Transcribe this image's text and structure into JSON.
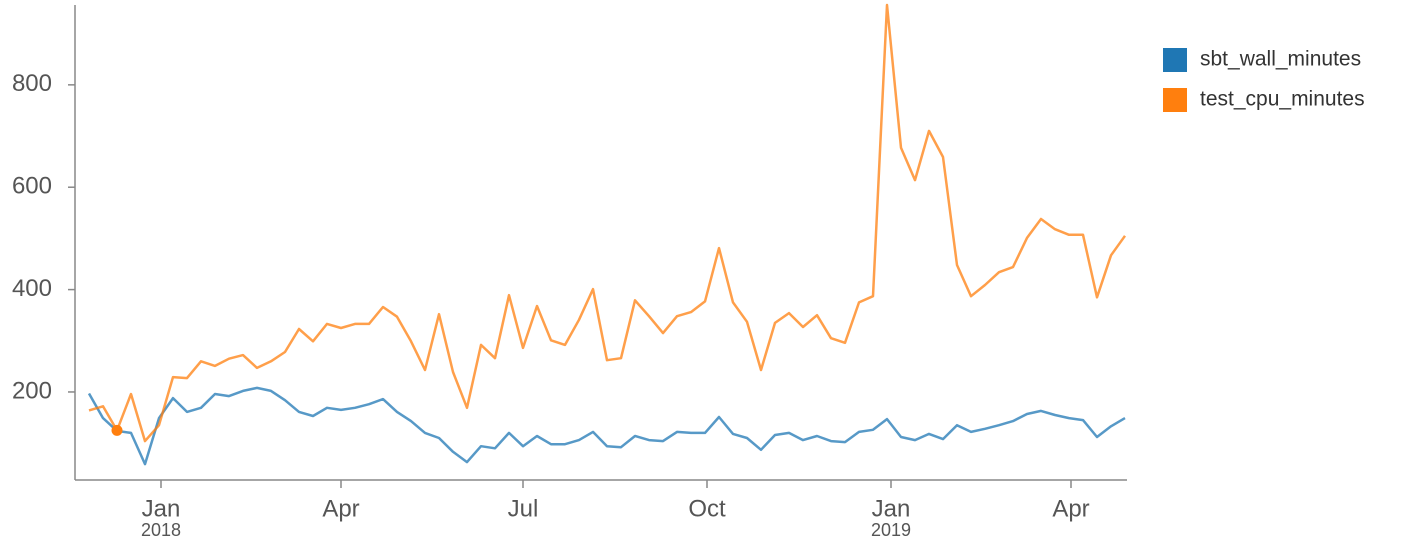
{
  "chart_data": {
    "type": "line",
    "x": [
      "2017-11-26",
      "2017-12-03",
      "2017-12-10",
      "2017-12-17",
      "2017-12-24",
      "2017-12-31",
      "2018-01-07",
      "2018-01-14",
      "2018-01-21",
      "2018-01-28",
      "2018-02-04",
      "2018-02-11",
      "2018-02-18",
      "2018-02-25",
      "2018-03-04",
      "2018-03-11",
      "2018-03-18",
      "2018-03-25",
      "2018-04-01",
      "2018-04-08",
      "2018-04-15",
      "2018-04-22",
      "2018-04-29",
      "2018-05-06",
      "2018-05-13",
      "2018-05-20",
      "2018-05-27",
      "2018-06-03",
      "2018-06-10",
      "2018-06-17",
      "2018-06-24",
      "2018-07-01",
      "2018-07-08",
      "2018-07-15",
      "2018-07-22",
      "2018-07-29",
      "2018-08-05",
      "2018-08-12",
      "2018-08-19",
      "2018-08-26",
      "2018-09-02",
      "2018-09-09",
      "2018-09-16",
      "2018-09-23",
      "2018-09-30",
      "2018-10-07",
      "2018-10-14",
      "2018-10-21",
      "2018-10-28",
      "2018-11-04",
      "2018-11-11",
      "2018-11-18",
      "2018-11-25",
      "2018-12-02",
      "2018-12-09",
      "2018-12-16",
      "2018-12-23",
      "2018-12-30",
      "2019-01-06",
      "2019-01-13",
      "2019-01-20",
      "2019-01-27",
      "2019-02-03",
      "2019-02-10",
      "2019-02-17",
      "2019-02-24",
      "2019-03-03",
      "2019-03-10",
      "2019-03-17",
      "2019-03-24",
      "2019-03-31",
      "2019-04-07",
      "2019-04-14",
      "2019-04-21",
      "2019-04-28"
    ],
    "series": [
      {
        "name": "sbt_wall_minutes",
        "color": "#1f77b4",
        "values": [
          197,
          149,
          124,
          120,
          59,
          149,
          188,
          161,
          169,
          196,
          192,
          202,
          208,
          202,
          184,
          161,
          153,
          169,
          165,
          169,
          176,
          186,
          161,
          143,
          120,
          110,
          83,
          63,
          94,
          90,
          120,
          94,
          114,
          98,
          98,
          106,
          122,
          94,
          92,
          114,
          106,
          104,
          122,
          120,
          120,
          151,
          118,
          110,
          87,
          116,
          120,
          106,
          114,
          104,
          102,
          122,
          126,
          147,
          112,
          106,
          118,
          108,
          135,
          122,
          128,
          135,
          143,
          157,
          163,
          155,
          149,
          145,
          112,
          133,
          149
        ]
      },
      {
        "name": "test_cpu_minutes",
        "color": "#ff7f0e",
        "values": [
          164,
          172,
          125,
          196,
          104,
          135,
          229,
          227,
          260,
          251,
          265,
          272,
          247,
          260,
          278,
          323,
          299,
          333,
          325,
          333,
          333,
          366,
          347,
          299,
          243,
          352,
          239,
          169,
          292,
          266,
          389,
          286,
          368,
          301,
          292,
          341,
          401,
          262,
          266,
          379,
          348,
          315,
          348,
          356,
          377,
          481,
          375,
          337,
          243,
          335,
          354,
          327,
          350,
          305,
          296,
          375,
          387,
          956,
          677,
          614,
          710,
          659,
          448,
          387,
          409,
          434,
          444,
          501,
          538,
          518,
          507,
          507,
          385,
          467,
          505
        ]
      }
    ],
    "xlim": [
      "2017-11-19",
      "2019-04-29"
    ],
    "xticks": [
      {
        "value": "2018-01-01",
        "label": "Jan",
        "year": "2018"
      },
      {
        "value": "2018-04-01",
        "label": "Apr"
      },
      {
        "value": "2018-07-01",
        "label": "Jul"
      },
      {
        "value": "2018-10-01",
        "label": "Oct"
      },
      {
        "value": "2019-01-01",
        "label": "Jan",
        "year": "2019"
      },
      {
        "value": "2019-04-01",
        "label": "Apr"
      }
    ],
    "ylim": [
      28,
      956
    ],
    "yticks": [
      200,
      400,
      600,
      800
    ],
    "grid": false,
    "legend": "right"
  }
}
